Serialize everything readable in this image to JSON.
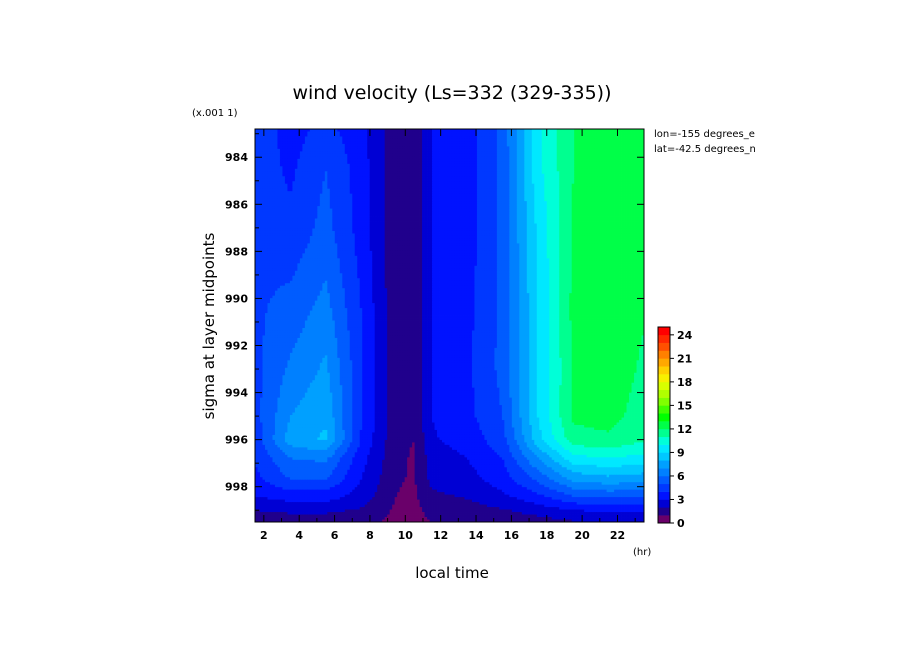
{
  "chart_data": {
    "type": "heatmap",
    "subtype": "filled-contour",
    "title": "wind velocity (Ls=332 (329-335))",
    "xlabel": "local time",
    "x_unit": "(hr)",
    "ylabel": "sigma at layer midpoints",
    "y_scale_note": "(x.001 1)",
    "annotations": [
      "lon=-155 degrees_e",
      "lat=-42.5 degrees_n"
    ],
    "xlim": [
      1.5,
      23.5
    ],
    "ylim": [
      999.5,
      982.8
    ],
    "x_ticks": [
      2,
      4,
      6,
      8,
      10,
      12,
      14,
      16,
      18,
      20,
      22
    ],
    "y_ticks": [
      984,
      986,
      988,
      990,
      992,
      994,
      996,
      998
    ],
    "x": [
      1.5,
      3.5,
      5.5,
      7.5,
      9.5,
      10.5,
      11.5,
      13.5,
      15.5,
      17.5,
      19.5,
      21.5,
      23.5
    ],
    "y": [
      982.8,
      984.5,
      987.2,
      990.5,
      993.0,
      995.0,
      996.0,
      996.8,
      997.7,
      998.4,
      999.0,
      999.5
    ],
    "z": [
      [
        4.6,
        3.6,
        4.3,
        3.4,
        1.2,
        1.0,
        3.0,
        3.5,
        5.3,
        9.8,
        12.0,
        12.0,
        12.0
      ],
      [
        4.6,
        3.8,
        5.0,
        3.5,
        1.2,
        1.0,
        3.0,
        3.5,
        5.3,
        9.7,
        12.0,
        12.5,
        12.0
      ],
      [
        4.8,
        4.3,
        5.4,
        3.6,
        1.2,
        1.0,
        3.0,
        3.5,
        5.3,
        9.2,
        12.1,
        12.7,
        12.0
      ],
      [
        4.8,
        5.4,
        6.4,
        4.0,
        1.2,
        1.0,
        3.0,
        3.7,
        5.3,
        9.0,
        12.3,
        12.9,
        12.1
      ],
      [
        4.7,
        6.2,
        7.2,
        4.2,
        1.2,
        1.0,
        3.0,
        3.8,
        5.3,
        9.0,
        12.1,
        12.7,
        11.8
      ],
      [
        4.6,
        7.0,
        7.8,
        4.1,
        1.2,
        1.0,
        3.0,
        3.7,
        5.0,
        9.0,
        12.2,
        12.4,
        11.5
      ],
      [
        4.4,
        7.5,
        8.2,
        3.9,
        1.2,
        1.0,
        2.9,
        3.4,
        4.6,
        8.6,
        11.6,
        11.8,
        11.2
      ],
      [
        4.1,
        6.0,
        6.2,
        3.4,
        1.2,
        0.9,
        2.5,
        3.0,
        4.0,
        7.0,
        9.6,
        10.0,
        9.6
      ],
      [
        3.7,
        5.0,
        5.0,
        3.0,
        1.1,
        0.9,
        2.3,
        2.6,
        3.5,
        5.2,
        7.2,
        7.6,
        7.3
      ],
      [
        3.0,
        3.5,
        3.5,
        2.6,
        1.0,
        0.8,
        1.8,
        2.1,
        2.8,
        3.8,
        5.0,
        5.3,
        5.2
      ],
      [
        2.0,
        2.2,
        2.2,
        1.9,
        0.8,
        0.7,
        1.4,
        1.6,
        1.9,
        2.4,
        3.0,
        3.2,
        3.2
      ],
      [
        1.4,
        1.5,
        1.5,
        1.4,
        0.7,
        0.6,
        1.0,
        1.1,
        1.3,
        1.6,
        1.9,
        2.0,
        2.0
      ]
    ],
    "levels": [
      0,
      1,
      2,
      3,
      4,
      5,
      6,
      7,
      8,
      9,
      10,
      11,
      12,
      13,
      14,
      15,
      16,
      17,
      18,
      19,
      20,
      21,
      22,
      23,
      24,
      25
    ],
    "colors": [
      "#6a006a",
      "#20008c",
      "#0000d4",
      "#0012ff",
      "#0038ff",
      "#005cff",
      "#0080ff",
      "#00a0ff",
      "#00c8ff",
      "#00e8ff",
      "#00ffd8",
      "#00ff90",
      "#00ff48",
      "#00ff00",
      "#40ff00",
      "#80ff00",
      "#b0ff00",
      "#d8ff00",
      "#f8f000",
      "#ffd000",
      "#ffa800",
      "#ff8000",
      "#ff5000",
      "#ff2800",
      "#ff0000"
    ],
    "colorbar_ticks": [
      0,
      3,
      6,
      9,
      12,
      15,
      18,
      21,
      24
    ],
    "grid": false,
    "legend": "colorbar right"
  }
}
